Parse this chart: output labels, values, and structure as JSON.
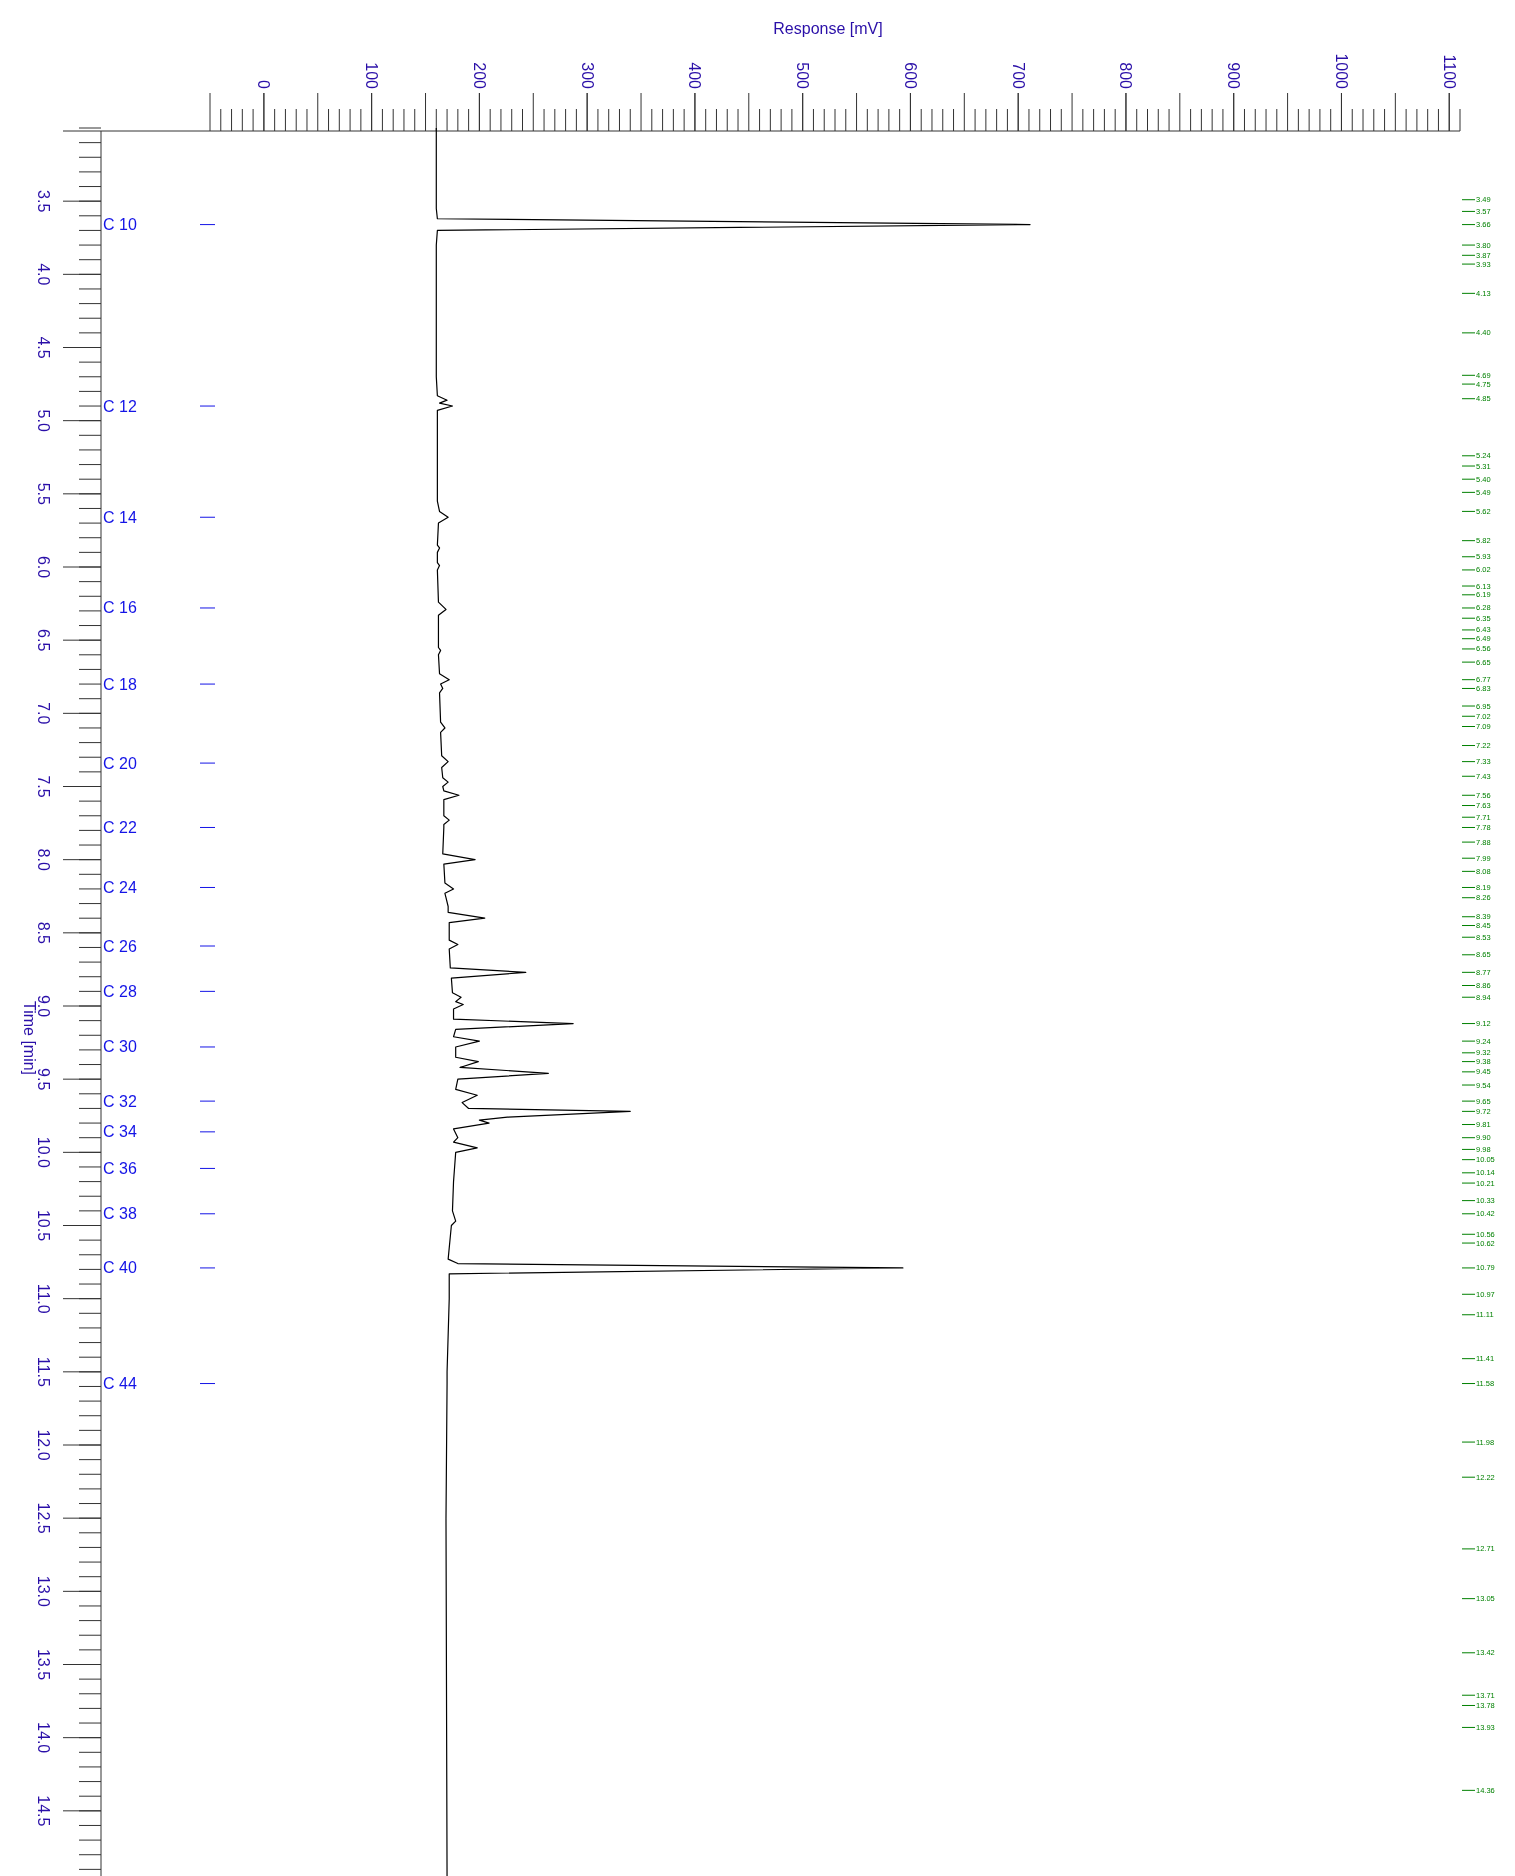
{
  "chart_data": {
    "type": "line",
    "orientation": "horizontal",
    "xlabel": "Response [mV]",
    "ylabel": "Time [min]",
    "xlim": [
      -50,
      1110
    ],
    "xticks": [
      0,
      100,
      200,
      300,
      400,
      500,
      600,
      700,
      800,
      900,
      1000,
      1100
    ],
    "ylim": [
      15,
      3
    ],
    "yticks": [
      3.5,
      {
        "value": 4,
        "label": "4.0"
      },
      4.5,
      {
        "value": 5,
        "label": "5.0"
      },
      5.5,
      {
        "value": 6,
        "label": "6.0"
      },
      6.5,
      {
        "value": 7,
        "label": "7.0"
      },
      7.5,
      {
        "value": 8,
        "label": "8.0"
      },
      8.5,
      {
        "value": 9,
        "label": "9.0"
      },
      9.5,
      {
        "value": 10,
        "label": "10.0"
      },
      10.5,
      {
        "value": 11,
        "label": "11.0"
      },
      11.5,
      {
        "value": 12,
        "label": "12.0"
      },
      12.5,
      {
        "value": 13,
        "label": "13.0"
      },
      13.5,
      {
        "value": 14,
        "label": "14.0"
      },
      14.5
    ],
    "y2lim": [
      15,
      3
    ],
    "y2ticks": [
      3.49,
      3.57,
      3.66,
      {
        "value": 3.8,
        "label": "3.80"
      },
      3.87,
      3.93,
      4.13,
      {
        "value": 4.4,
        "label": "4.40"
      },
      4.69,
      4.75,
      4.85,
      5.24,
      5.31,
      {
        "value": 5.4,
        "label": "5.40"
      },
      5.49,
      5.62,
      5.82,
      5.93,
      6.02,
      6.13,
      6.19,
      6.28,
      6.35,
      6.43,
      6.49,
      6.56,
      6.65,
      6.77,
      6.83,
      6.95,
      7.02,
      7.09,
      7.22,
      7.33,
      7.43,
      7.56,
      7.63,
      7.71,
      7.78,
      7.88,
      7.99,
      8.08,
      8.19,
      8.26,
      8.39,
      8.45,
      8.53,
      8.65,
      8.77,
      8.86,
      8.94,
      9.12,
      9.24,
      9.32,
      9.38,
      9.45,
      9.54,
      9.65,
      9.72,
      9.81,
      {
        "value": 9.9,
        "label": "9.90"
      },
      9.98,
      10.05,
      10.14,
      10.21,
      10.33,
      10.42,
      10.56,
      10.62,
      10.79,
      10.97,
      11.11,
      11.41,
      11.58,
      11.98,
      12.22,
      12.71,
      13.05,
      13.42,
      13.71,
      13.78,
      13.93,
      14.36
    ],
    "x": [
      3.0,
      3.55,
      3.62,
      3.66,
      3.7,
      3.8,
      4.7,
      4.83,
      4.86,
      4.88,
      4.9,
      4.93,
      5.55,
      5.62,
      5.66,
      5.7,
      5.85,
      5.87,
      5.9,
      5.97,
      5.99,
      6.02,
      6.24,
      6.29,
      6.33,
      6.55,
      6.57,
      6.6,
      6.73,
      6.77,
      6.8,
      6.83,
      6.86,
      7.06,
      7.1,
      7.13,
      7.29,
      7.33,
      7.37,
      7.44,
      7.47,
      7.5,
      7.53,
      7.56,
      7.59,
      7.7,
      7.73,
      7.76,
      7.78,
      7.96,
      8.0,
      8.03,
      8.16,
      8.2,
      8.23,
      8.26,
      8.32,
      8.36,
      8.4,
      8.43,
      8.55,
      8.58,
      8.61,
      8.74,
      8.77,
      8.81,
      8.91,
      8.94,
      8.97,
      8.99,
      9.02,
      9.09,
      9.12,
      9.16,
      9.21,
      9.24,
      9.28,
      9.35,
      9.38,
      9.42,
      9.46,
      9.5,
      9.57,
      9.61,
      9.66,
      9.7,
      9.72,
      9.76,
      9.78,
      9.8,
      9.84,
      9.9,
      9.93,
      9.97,
      10.0,
      10.1,
      10.2,
      10.4,
      10.47,
      10.5,
      10.73,
      10.76,
      10.79,
      10.83,
      11.0,
      11.5,
      11.58,
      12.5,
      15.0
    ],
    "series": [
      {
        "color": "#000000",
        "values": [
          160,
          160,
          161,
          711,
          161,
          160,
          160,
          161,
          170,
          163,
          175,
          161,
          161,
          163,
          171,
          162,
          161,
          163,
          161,
          161,
          163,
          161,
          162,
          169,
          162,
          162,
          164,
          162,
          163,
          172,
          164,
          166,
          163,
          164,
          168,
          164,
          165,
          171,
          165,
          166,
          171,
          166,
          167,
          181,
          167,
          167,
          172,
          167,
          167,
          166,
          196,
          167,
          168,
          176,
          168,
          169,
          171,
          171,
          205,
          172,
          172,
          180,
          172,
          173,
          243,
          174,
          175,
          183,
          178,
          185,
          176,
          176,
          287,
          178,
          176,
          200,
          178,
          178,
          199,
          182,
          264,
          180,
          178,
          198,
          184,
          190,
          340,
          226,
          200,
          209,
          176,
          180,
          176,
          198,
          178,
          177,
          176,
          175,
          178,
          174,
          171,
          180,
          593,
          172,
          172,
          170,
          170,
          169,
          170
        ]
      }
    ],
    "ref_lines": [
      {
        "axis": "y",
        "value": 3.66,
        "label": "C 10"
      },
      {
        "axis": "y",
        "value": 4.9,
        "label": "C 12"
      },
      {
        "axis": "y",
        "value": 5.66,
        "label": "C 14"
      },
      {
        "axis": "y",
        "value": 6.28,
        "label": "C 16"
      },
      {
        "axis": "y",
        "value": 6.8,
        "label": "C 18"
      },
      {
        "axis": "y",
        "value": 7.34,
        "label": "C 20"
      },
      {
        "axis": "y",
        "value": 7.78,
        "label": "C 22"
      },
      {
        "axis": "y",
        "value": 8.19,
        "label": "C 24"
      },
      {
        "axis": "y",
        "value": 8.59,
        "label": "C 26"
      },
      {
        "axis": "y",
        "value": 8.9,
        "label": "C 28"
      },
      {
        "axis": "y",
        "value": 9.28,
        "label": "C 30"
      },
      {
        "axis": "y",
        "value": 9.65,
        "label": "C 32"
      },
      {
        "axis": "y",
        "value": 9.86,
        "label": "C 34"
      },
      {
        "axis": "y",
        "value": 10.11,
        "label": "C 36"
      },
      {
        "axis": "y",
        "value": 10.42,
        "label": "C 38"
      },
      {
        "axis": "y",
        "value": 10.79,
        "label": "C 40"
      },
      {
        "axis": "y",
        "value": 11.58,
        "label": "C 44"
      }
    ]
  }
}
